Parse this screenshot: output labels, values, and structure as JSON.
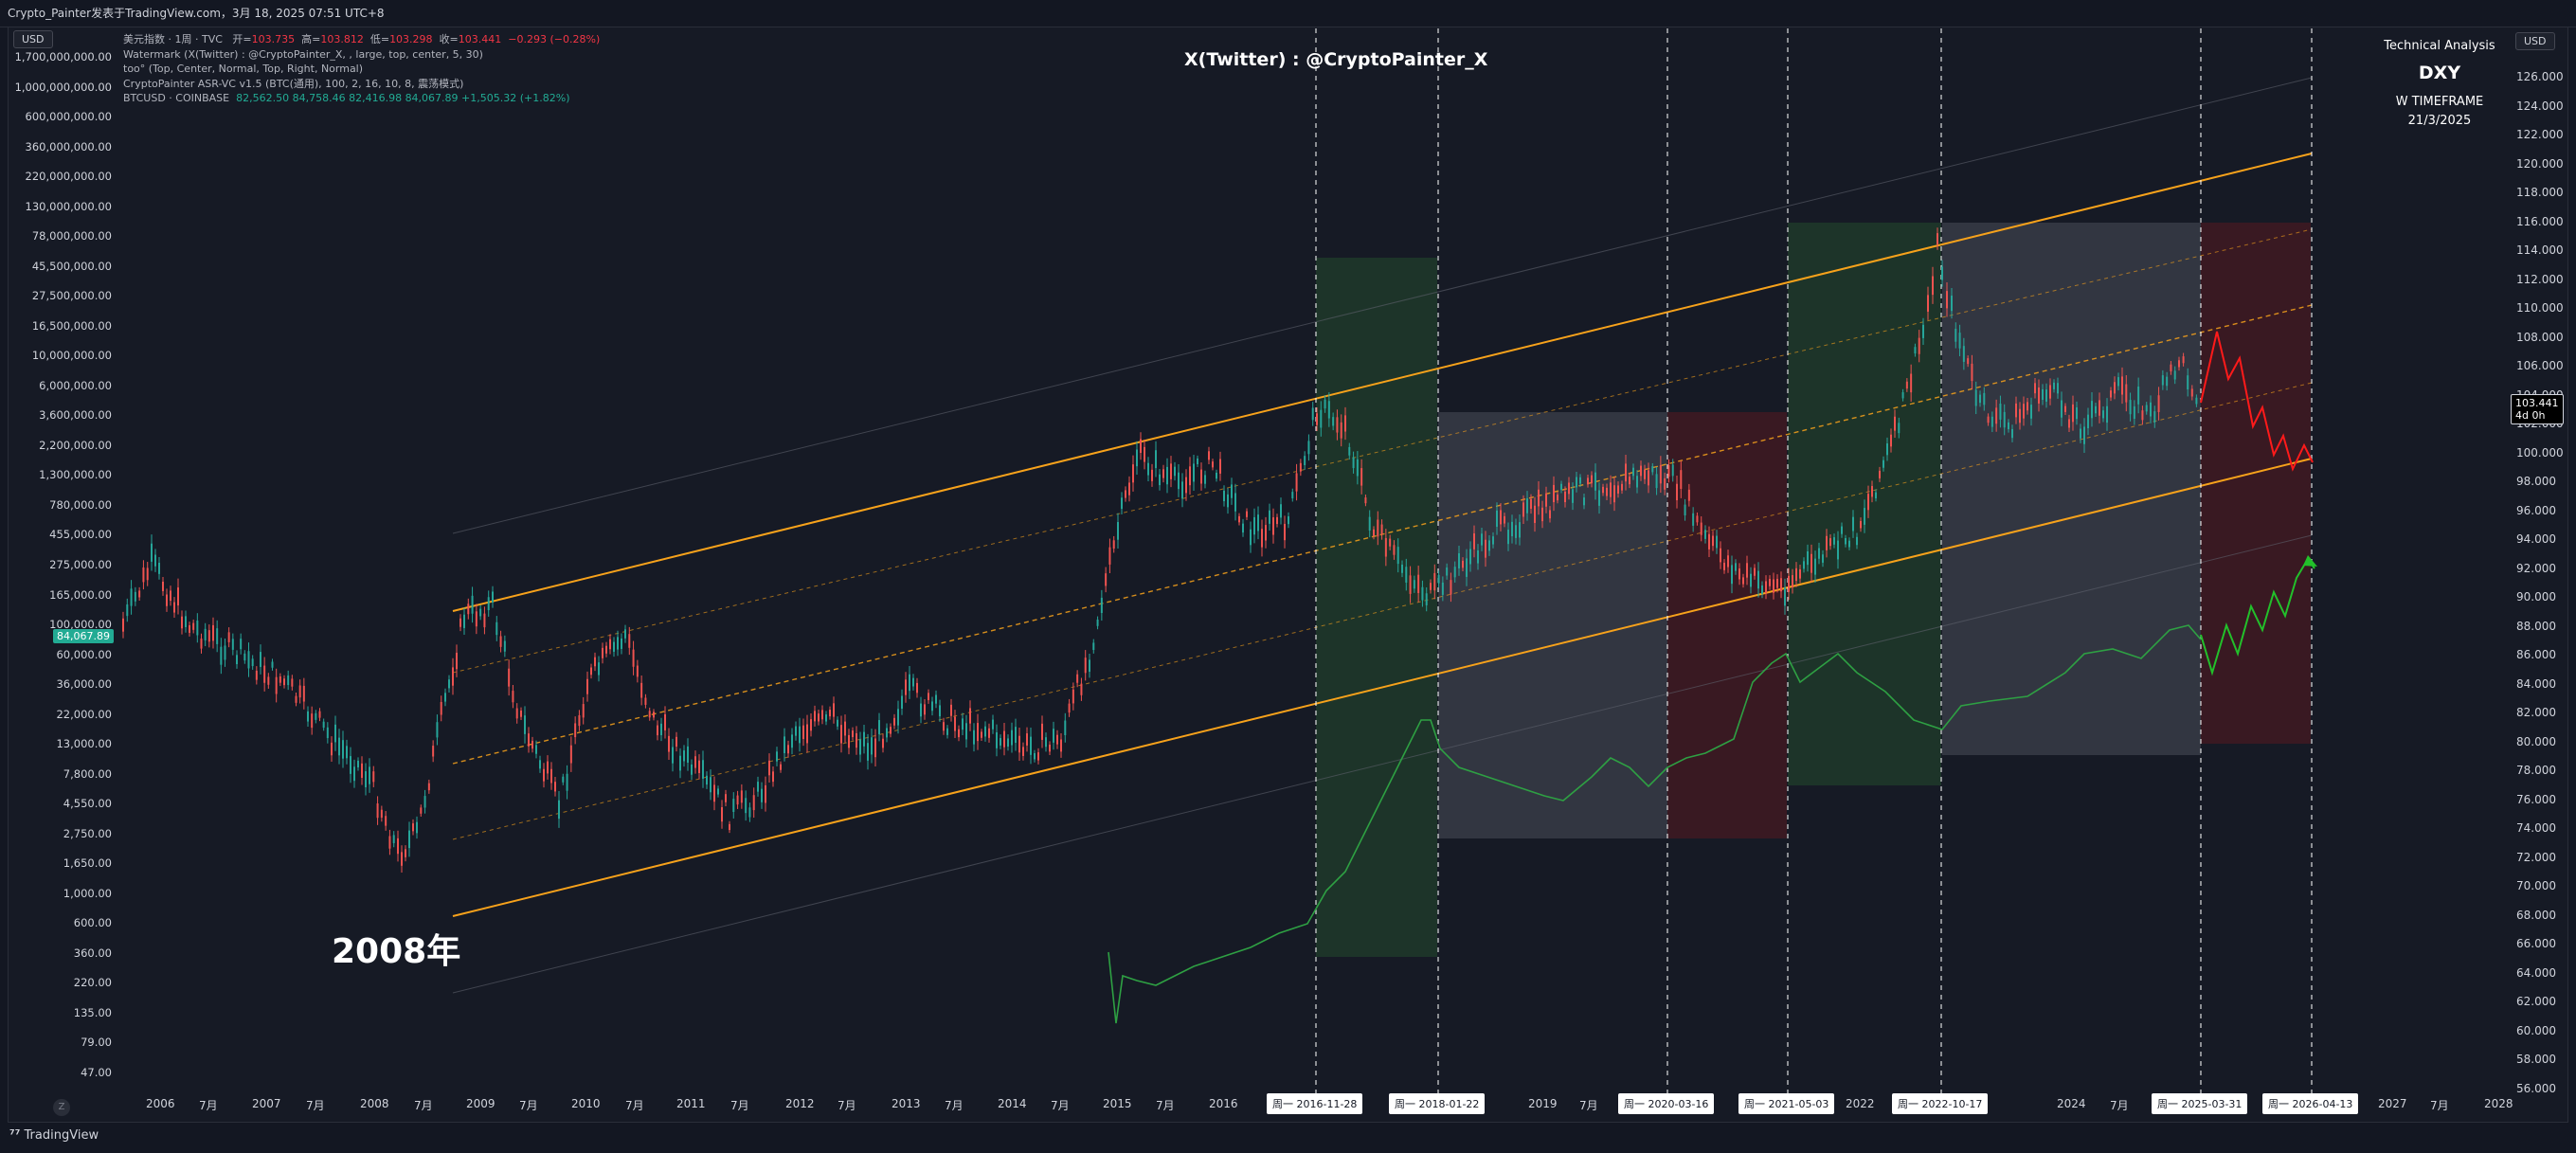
{
  "header": {
    "title": "Crypto_Painter发表于TradingView.com，3月 18, 2025 07:51 UTC+8"
  },
  "left_axis": {
    "currency": "USD",
    "labels": [
      "1,700,000,000.00",
      "1,000,000,000.00",
      "600,000,000.00",
      "360,000,000.00",
      "220,000,000.00",
      "130,000,000.00",
      "78,000,000.00",
      "45,500,000.00",
      "27,500,000.00",
      "16,500,000.00",
      "10,000,000.00",
      "6,000,000.00",
      "3,600,000.00",
      "2,200,000.00",
      "1,300,000.00",
      "780,000.00",
      "455,000.00",
      "275,000.00",
      "165,000.00",
      "100,000.00",
      "60,000.00",
      "36,000.00",
      "22,000.00",
      "13,000.00",
      "7,800.00",
      "4,550.00",
      "2,750.00",
      "1,650.00",
      "1,000.00",
      "600.00",
      "360.00",
      "220.00",
      "135.00",
      "79.00",
      "47.00"
    ],
    "price_tag": "84,067.89"
  },
  "right_axis": {
    "currency": "USD",
    "labels": [
      "126.000",
      "124.000",
      "122.000",
      "120.000",
      "118.000",
      "116.000",
      "114.000",
      "112.000",
      "110.000",
      "108.000",
      "106.000",
      "104.000",
      "102.000",
      "100.000",
      "98.000",
      "96.000",
      "94.000",
      "92.000",
      "90.000",
      "88.000",
      "86.000",
      "84.000",
      "82.000",
      "80.000",
      "78.000",
      "76.000",
      "74.000",
      "72.000",
      "70.000",
      "68.000",
      "66.000",
      "64.000",
      "62.000",
      "60.000",
      "58.000",
      "56.000"
    ],
    "price_tag": "103.441",
    "countdown": "4d 0h"
  },
  "legend": {
    "line1_name": "美元指数 · 1周 · TVC",
    "line1_open_k": "开=",
    "line1_open": "103.735",
    "line1_high_k": "高=",
    "line1_high": "103.812",
    "line1_low_k": "低=",
    "line1_low": "103.298",
    "line1_close_k": "收=",
    "line1_close": "103.441",
    "line1_change": "−0.293 (−0.28%)",
    "line2": "Watermark (X(Twitter) : @CryptoPainter_X, , large, top, center, 5, 30)",
    "line3": "too° (Top, Center, Normal, Top, Right, Normal)",
    "line4": "CryptoPainter ASR-VC v1.5 (BTC(通用), 100, 2, 16, 10, 8, 震荡模式)",
    "line5_name": "BTCUSD · COINBASE",
    "line5_values": "82,562.50  84,758.46  82,416.98  84,067.89  +1,505.32 (+1.82%)"
  },
  "watermark": "X(Twitter) : @CryptoPainter_X",
  "technical_analysis": {
    "title": "Technical Analysis",
    "symbol": "DXY",
    "timeframe": "W TIMEFRAME",
    "date": "21/3/2025"
  },
  "annotation_2008": "2008年",
  "x_axis": {
    "labels": [
      "2006",
      "7月",
      "2007",
      "7月",
      "2008",
      "7月",
      "2009",
      "7月",
      "2010",
      "7月",
      "2011",
      "7月",
      "2012",
      "7月",
      "2013",
      "7月",
      "2014",
      "7月",
      "2015",
      "7月",
      "2016",
      "2019",
      "7月",
      "2022",
      "2024",
      "7月",
      "2027",
      "7月",
      "2028"
    ],
    "date_markers": [
      "周一 2016-11-28",
      "周一 2018-01-22",
      "周一 2020-03-16",
      "周一 2021-05-03",
      "周一 2022-10-17",
      "周一 2025-03-31",
      "周一 2026-04-13"
    ]
  },
  "footer": {
    "logo": "TradingView",
    "zoom_label": "Z"
  },
  "colors": {
    "background": "#161a25",
    "channel": "#f7a21b",
    "btc_line": "#2ea043",
    "dxy_up": "#26a69a",
    "dxy_down": "#ef5350",
    "zone_green": "#1e3a2a",
    "zone_gray": "#3a3d48",
    "zone_red": "#3d1a22",
    "projection_red": "#ff1a1a",
    "projection_green": "#22c02a"
  }
}
